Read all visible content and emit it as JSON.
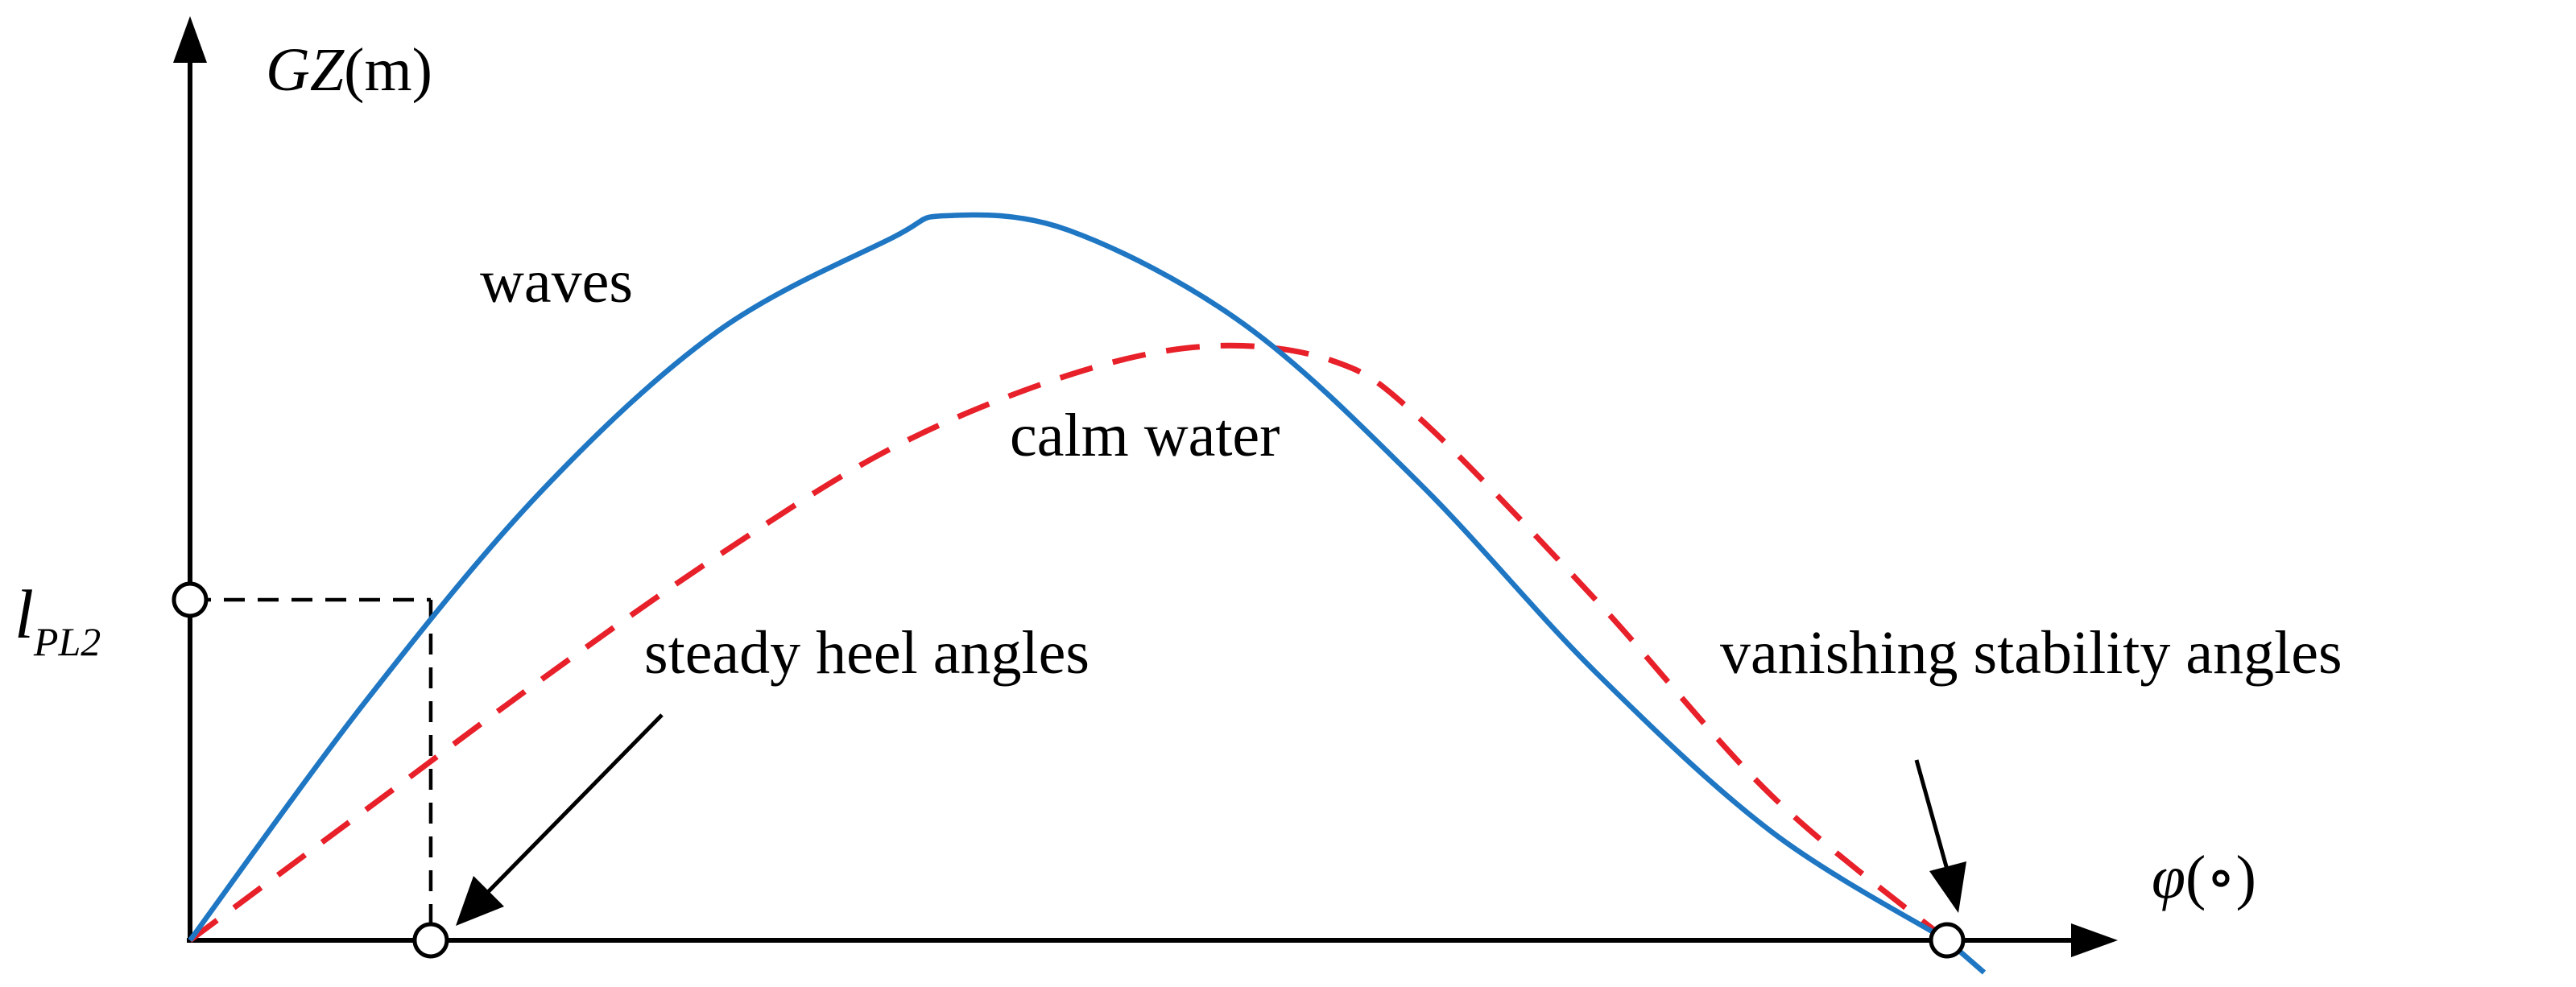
{
  "chart_data": {
    "type": "line",
    "title": "",
    "ylabel_var": "GZ",
    "ylabel_unit": "(m)",
    "xlabel_var": "φ",
    "xlabel_unit": "(∘)",
    "xlim": [
      0,
      1
    ],
    "ylim": [
      0,
      1
    ],
    "ticks": "none",
    "grid": false,
    "series": [
      {
        "name": "waves",
        "color": "#1f77c4",
        "style": "solid",
        "x": [
          0,
          0.1,
          0.2,
          0.3,
          0.4,
          0.43,
          0.5,
          0.6,
          0.7,
          0.8,
          0.9,
          1.0
        ],
        "y": [
          0,
          0.33,
          0.62,
          0.84,
          0.97,
          1.0,
          0.98,
          0.85,
          0.63,
          0.37,
          0.15,
          0
        ]
      },
      {
        "name": "calm water",
        "color": "#e8202a",
        "style": "dashed",
        "x": [
          0,
          0.1,
          0.2,
          0.3,
          0.4,
          0.5,
          0.58,
          0.65,
          0.7,
          0.8,
          0.9,
          1.0
        ],
        "y": [
          0,
          0.18,
          0.36,
          0.53,
          0.68,
          0.78,
          0.82,
          0.8,
          0.72,
          0.47,
          0.2,
          0
        ]
      }
    ],
    "guide": {
      "y_label_main": "l",
      "y_label_sub": "PL2",
      "y_value": 0.47,
      "x_value": 0.137
    },
    "annotations": [
      {
        "text": "steady heel angles",
        "x": 0.137,
        "y": 0
      },
      {
        "text": "vanishing stability angles",
        "x": 1.0,
        "y": 0
      }
    ]
  },
  "colors": {
    "waves": "#1f77c4",
    "calm_water": "#e8202a",
    "axis": "#000000"
  }
}
